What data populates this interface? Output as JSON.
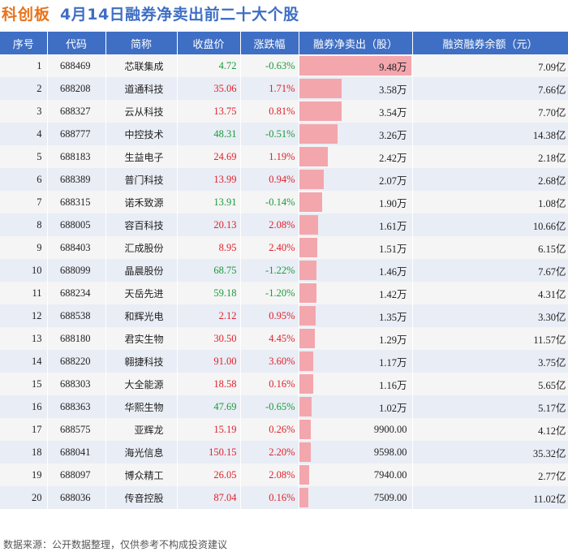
{
  "title": {
    "tag": "科创板",
    "text": "4月14日融券净卖出前二十大个股"
  },
  "colors": {
    "header_bg": "#3f6fc4",
    "up": "#e0202a",
    "down": "#1a9a3a",
    "bar": "#f4a6ad",
    "tag": "#e8731a"
  },
  "table": {
    "headers": [
      "序号",
      "代码",
      "简称",
      "收盘价",
      "涨跌幅",
      "融券净卖出（股）",
      "融资融券余额（元）"
    ]
  },
  "chart_data": {
    "type": "table",
    "title": "4月14日融券净卖出前二十大个股",
    "columns": [
      "序号",
      "代码",
      "简称",
      "收盘价",
      "涨跌幅",
      "融券净卖出（股）",
      "融资融券余额（元）"
    ],
    "rows": [
      {
        "rank": "1",
        "code": "688469",
        "name": "芯联集成",
        "price": "4.72",
        "change": "-0.63%",
        "dir": "down",
        "net": "9.48万",
        "net_value": 94800,
        "balance": "7.09亿"
      },
      {
        "rank": "2",
        "code": "688208",
        "name": "道通科技",
        "price": "35.06",
        "change": "1.71%",
        "dir": "up",
        "net": "3.58万",
        "net_value": 35800,
        "balance": "7.66亿"
      },
      {
        "rank": "3",
        "code": "688327",
        "name": "云从科技",
        "price": "13.75",
        "change": "0.81%",
        "dir": "up",
        "net": "3.54万",
        "net_value": 35400,
        "balance": "7.70亿"
      },
      {
        "rank": "4",
        "code": "688777",
        "name": "中控技术",
        "price": "48.31",
        "change": "-0.51%",
        "dir": "down",
        "net": "3.26万",
        "net_value": 32600,
        "balance": "14.38亿"
      },
      {
        "rank": "5",
        "code": "688183",
        "name": "生益电子",
        "price": "24.69",
        "change": "1.19%",
        "dir": "up",
        "net": "2.42万",
        "net_value": 24200,
        "balance": "2.18亿"
      },
      {
        "rank": "6",
        "code": "688389",
        "name": "普门科技",
        "price": "13.99",
        "change": "0.94%",
        "dir": "up",
        "net": "2.07万",
        "net_value": 20700,
        "balance": "2.68亿"
      },
      {
        "rank": "7",
        "code": "688315",
        "name": "诺禾致源",
        "price": "13.91",
        "change": "-0.14%",
        "dir": "down",
        "net": "1.90万",
        "net_value": 19000,
        "balance": "1.08亿"
      },
      {
        "rank": "8",
        "code": "688005",
        "name": "容百科技",
        "price": "20.13",
        "change": "2.08%",
        "dir": "up",
        "net": "1.61万",
        "net_value": 16100,
        "balance": "10.66亿"
      },
      {
        "rank": "9",
        "code": "688403",
        "name": "汇成股份",
        "price": "8.95",
        "change": "2.40%",
        "dir": "up",
        "net": "1.51万",
        "net_value": 15100,
        "balance": "6.15亿"
      },
      {
        "rank": "10",
        "code": "688099",
        "name": "晶晨股份",
        "price": "68.75",
        "change": "-1.22%",
        "dir": "down",
        "net": "1.46万",
        "net_value": 14600,
        "balance": "7.67亿"
      },
      {
        "rank": "11",
        "code": "688234",
        "name": "天岳先进",
        "price": "59.18",
        "change": "-1.20%",
        "dir": "down",
        "net": "1.42万",
        "net_value": 14200,
        "balance": "4.31亿"
      },
      {
        "rank": "12",
        "code": "688538",
        "name": "和辉光电",
        "price": "2.12",
        "change": "0.95%",
        "dir": "up",
        "net": "1.35万",
        "net_value": 13500,
        "balance": "3.30亿"
      },
      {
        "rank": "13",
        "code": "688180",
        "name": "君实生物",
        "price": "30.50",
        "change": "4.45%",
        "dir": "up",
        "net": "1.29万",
        "net_value": 12900,
        "balance": "11.57亿"
      },
      {
        "rank": "14",
        "code": "688220",
        "name": "翱捷科技",
        "price": "91.00",
        "change": "3.60%",
        "dir": "up",
        "net": "1.17万",
        "net_value": 11700,
        "balance": "3.75亿"
      },
      {
        "rank": "15",
        "code": "688303",
        "name": "大全能源",
        "price": "18.58",
        "change": "0.16%",
        "dir": "up",
        "net": "1.16万",
        "net_value": 11600,
        "balance": "5.65亿"
      },
      {
        "rank": "16",
        "code": "688363",
        "name": "华熙生物",
        "price": "47.69",
        "change": "-0.65%",
        "dir": "down",
        "net": "1.02万",
        "net_value": 10200,
        "balance": "5.17亿"
      },
      {
        "rank": "17",
        "code": "688575",
        "name": "亚辉龙",
        "price": "15.19",
        "change": "0.26%",
        "dir": "up",
        "net": "9900.00",
        "net_value": 9900,
        "balance": "4.12亿"
      },
      {
        "rank": "18",
        "code": "688041",
        "name": "海光信息",
        "price": "150.15",
        "change": "2.20%",
        "dir": "up",
        "net": "9598.00",
        "net_value": 9598,
        "balance": "35.32亿"
      },
      {
        "rank": "19",
        "code": "688097",
        "name": "博众精工",
        "price": "26.05",
        "change": "2.08%",
        "dir": "up",
        "net": "7940.00",
        "net_value": 7940,
        "balance": "2.77亿"
      },
      {
        "rank": "20",
        "code": "688036",
        "name": "传音控股",
        "price": "87.04",
        "change": "0.16%",
        "dir": "up",
        "net": "7509.00",
        "net_value": 7509,
        "balance": "11.02亿"
      }
    ]
  },
  "footer": "数据来源：公开数据整理，仅供参考不构成投资建议"
}
